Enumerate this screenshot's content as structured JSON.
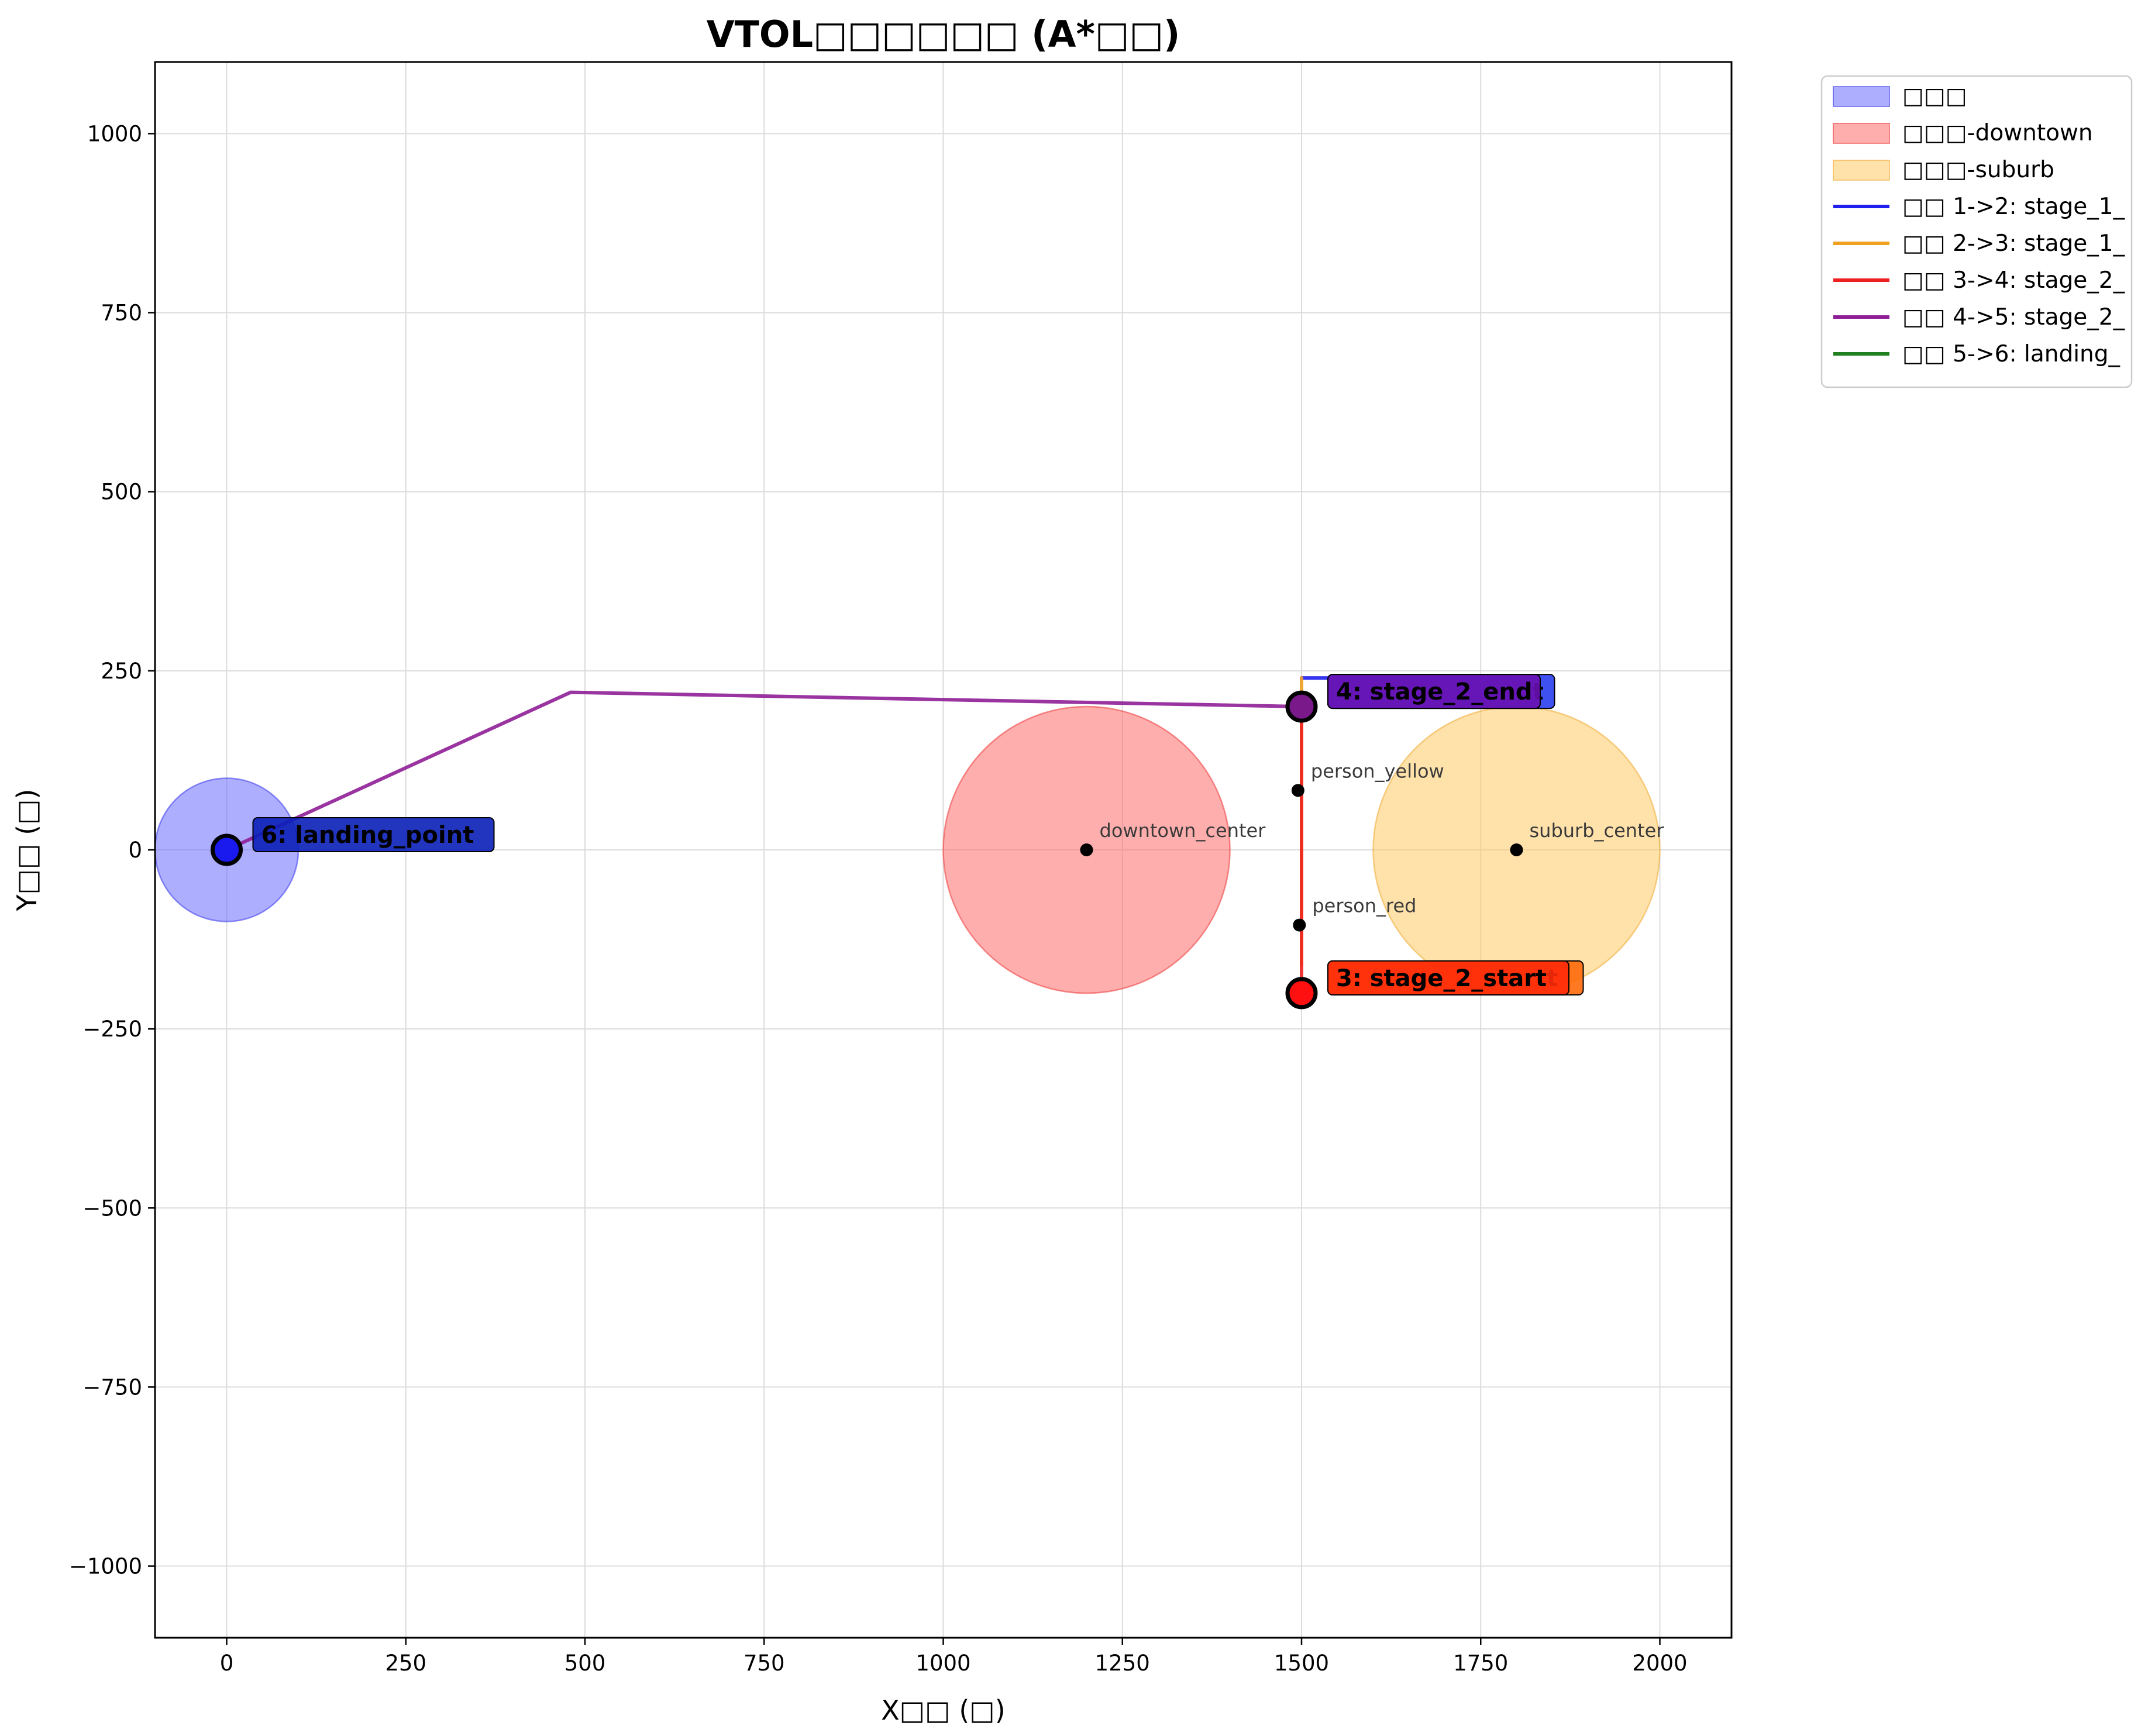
{
  "chart_data": {
    "type": "scatter",
    "title": "VTOL□□□□□□ (A*□□)",
    "xlabel": "X□□ (□)",
    "ylabel": "Y□□ (□)",
    "xlim": [
      -100,
      2100
    ],
    "ylim": [
      -1100,
      1100
    ],
    "xticks": [
      0,
      250,
      500,
      750,
      1000,
      1250,
      1500,
      1750,
      2000
    ],
    "yticks": [
      -1000,
      -750,
      -500,
      -250,
      0,
      250,
      500,
      750,
      1000
    ],
    "xtick_labels": [
      "0",
      "250",
      "500",
      "750",
      "1000",
      "1250",
      "1500",
      "1750",
      "2000"
    ],
    "ytick_labels": [
      "−1000",
      "−750",
      "−500",
      "−250",
      "0",
      "250",
      "500",
      "750",
      "1000"
    ],
    "grid": true,
    "legend_position": "outside-right-top",
    "zones": [
      {
        "name": "□□□",
        "center": [
          0,
          0
        ],
        "radius": 100,
        "color": "#6b6bff",
        "edge": "#4444ee"
      },
      {
        "name": "□□□-downtown",
        "center": [
          1200,
          0
        ],
        "radius": 200,
        "color": "#ff6b6b",
        "edge": "#ee4444"
      },
      {
        "name": "□□□-suburb",
        "center": [
          1800,
          0
        ],
        "radius": 200,
        "color": "#ffc864",
        "edge": "#f0b040"
      }
    ],
    "segments": [
      {
        "name": "□□ 1->2: stage_1_",
        "color": "#2020ee",
        "points": [
          [
            1800,
            240
          ],
          [
            1500,
            240
          ]
        ]
      },
      {
        "name": "□□ 2->3: stage_1_",
        "color": "#f0a020",
        "points": [
          [
            1500,
            240
          ],
          [
            1500,
            -160
          ]
        ]
      },
      {
        "name": "□□ 3->4: stage_2_",
        "color": "#ee2020",
        "points": [
          [
            1500,
            -200
          ],
          [
            1500,
            200
          ]
        ]
      },
      {
        "name": "□□ 4->5: stage_2_",
        "color": "#8e1e96",
        "points": [
          [
            1500,
            200
          ],
          [
            480,
            220
          ],
          [
            0,
            0
          ]
        ]
      },
      {
        "name": "□□ 5->6: landing_",
        "color": "#208020",
        "points": [
          [
            0,
            0
          ],
          [
            0,
            0
          ]
        ]
      }
    ],
    "points_of_interest": [
      {
        "label": "downtown_center",
        "x": 1200,
        "y": 0
      },
      {
        "label": "suburb_center",
        "x": 1800,
        "y": 0
      },
      {
        "label": "person_yellow",
        "x": 1495,
        "y": 83
      },
      {
        "label": "person_red",
        "x": 1497,
        "y": -105
      }
    ],
    "waypoints": [
      {
        "label": "4: stage_2_end",
        "x": 1500,
        "y": 200,
        "marker_color": "#7a1a8a",
        "box_color": "#6a0fb0",
        "under_label": "t",
        "under_color": "#2a3ff0"
      },
      {
        "label": "3: stage_2_start",
        "x": 1500,
        "y": -200,
        "marker_color": "#ff1010",
        "box_color": "#ff2a0a",
        "under_label": "t",
        "under_color": "#ff6a0a"
      },
      {
        "label": "6: landing_point",
        "x": 0,
        "y": 0,
        "marker_color": "#1a1aee",
        "box_color": "#0a1fb8"
      }
    ]
  }
}
